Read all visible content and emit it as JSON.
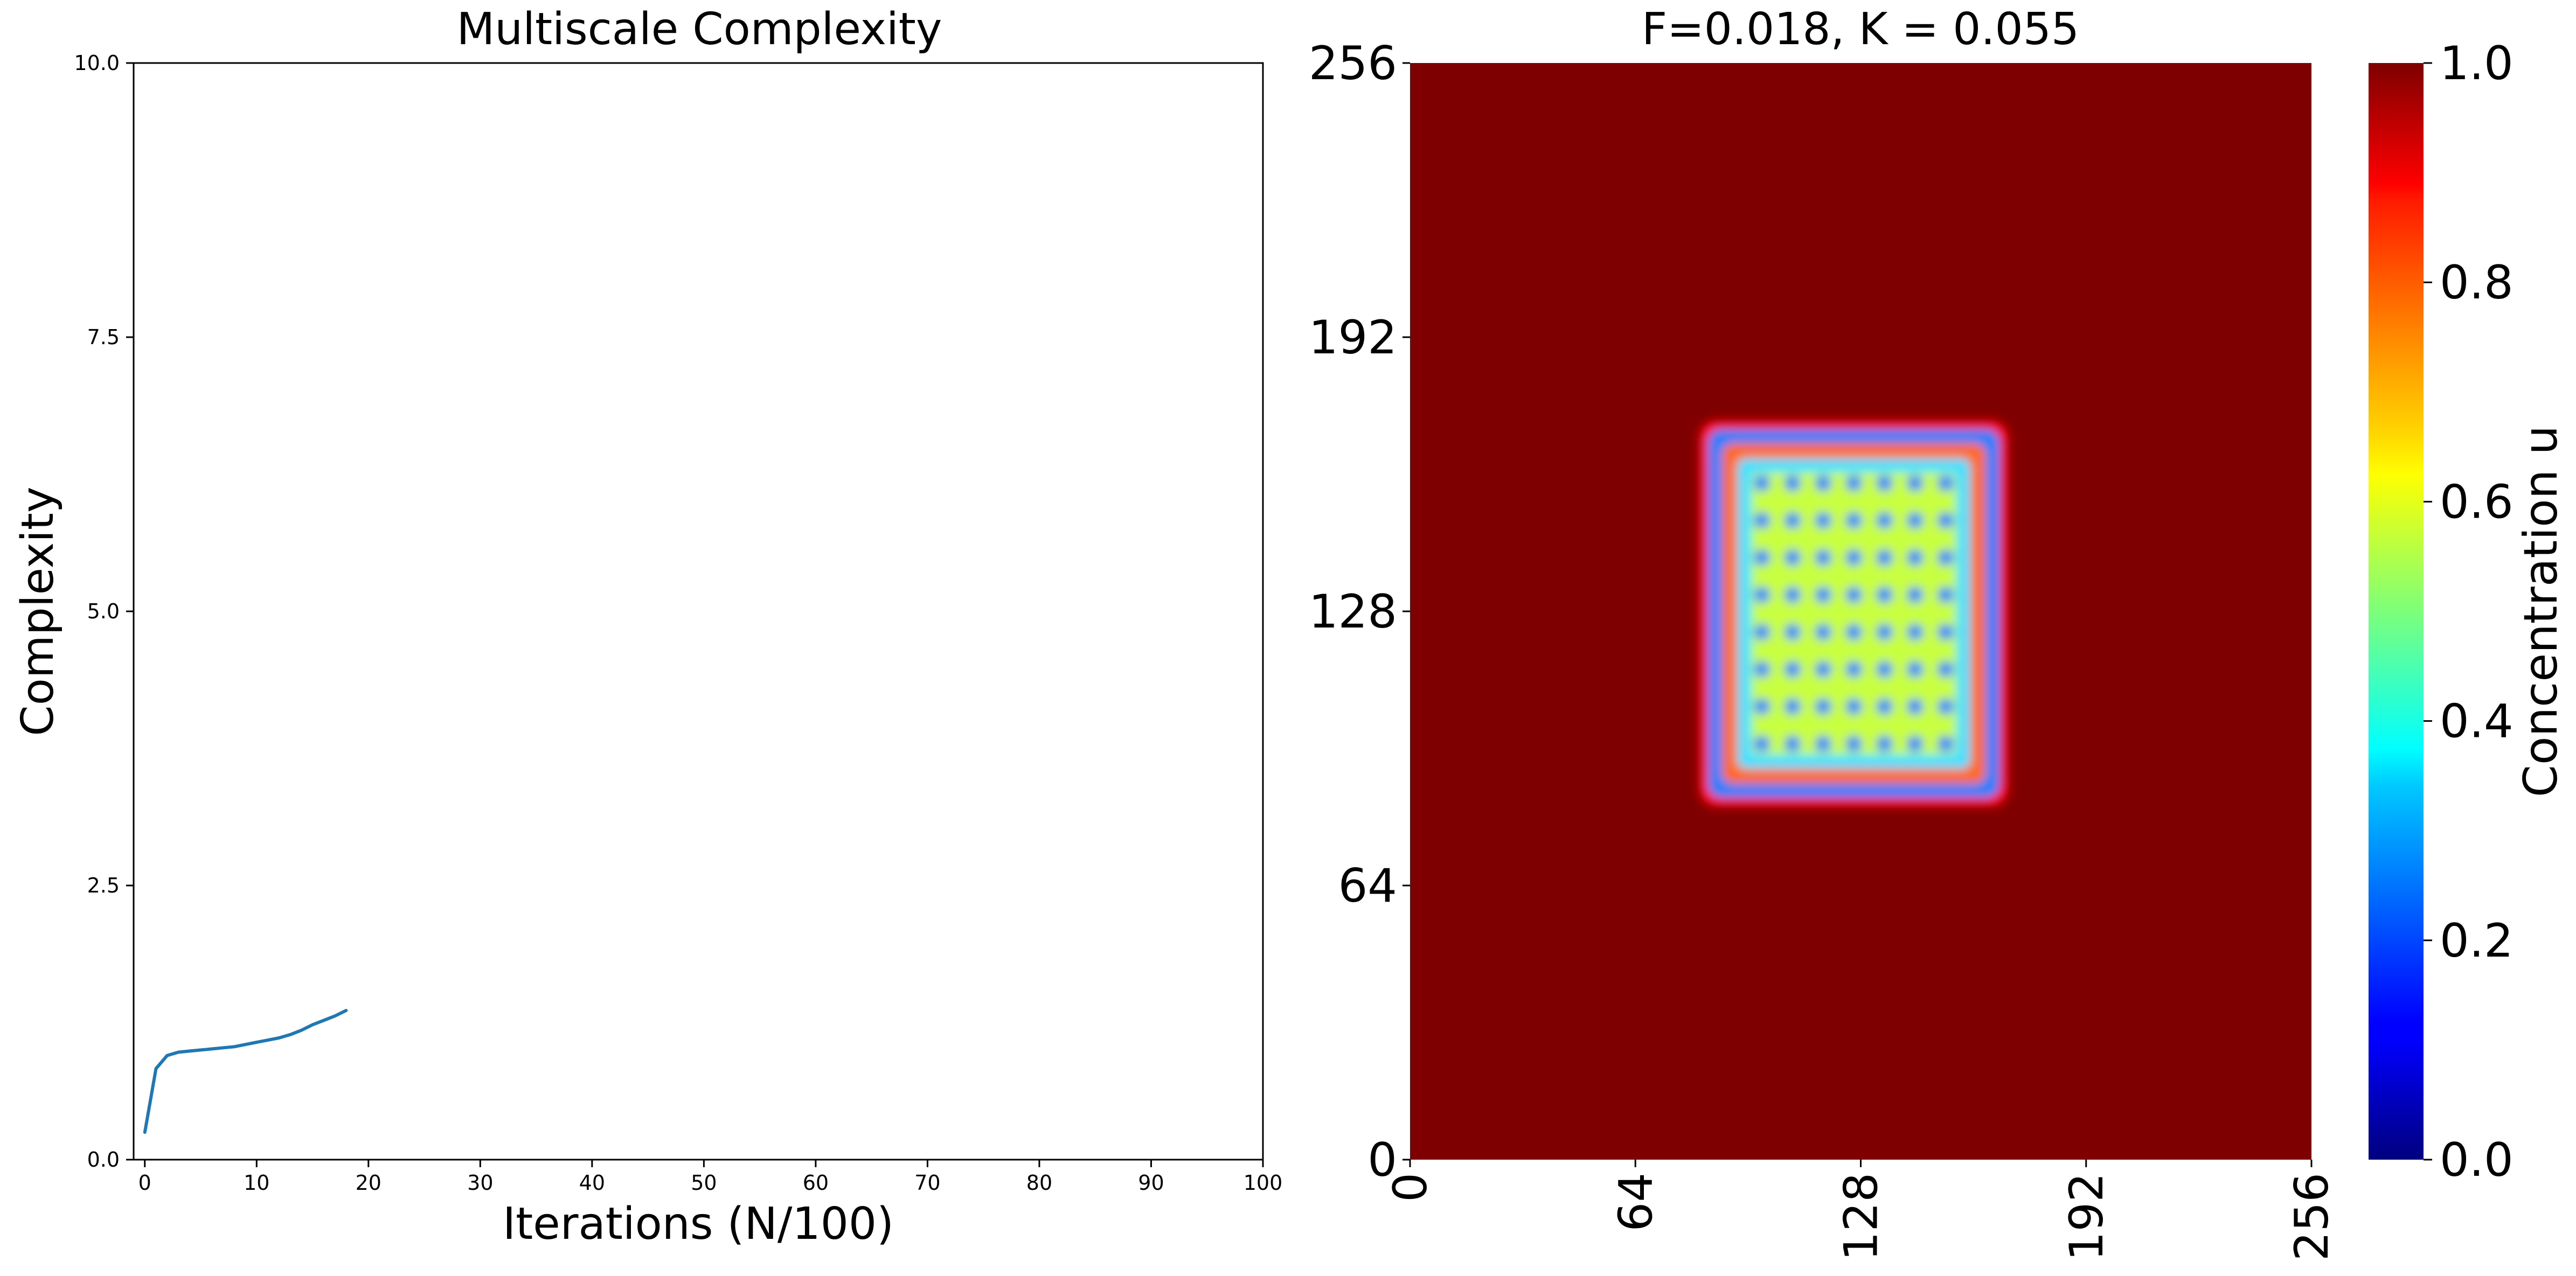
{
  "chart_data": [
    {
      "type": "line",
      "title": "Multiscale Complexity",
      "xlabel": "Iterations (N/100)",
      "ylabel": "Complexity",
      "xlim": [
        -1,
        100
      ],
      "ylim": [
        0,
        10
      ],
      "xticks": [
        0,
        10,
        20,
        30,
        40,
        50,
        60,
        70,
        80,
        90,
        100
      ],
      "xtick_labels": [
        "0",
        "10",
        "20",
        "30",
        "40",
        "50",
        "60",
        "70",
        "80",
        "90",
        "100"
      ],
      "yticks": [
        0,
        2.5,
        5,
        7.5,
        10
      ],
      "ytick_labels": [
        "0.0",
        "2.5",
        "5.0",
        "7.5",
        "10.0"
      ],
      "grid": false,
      "colors": {
        "line": "#1f77b4"
      },
      "series": [
        {
          "x": [
            0,
            1,
            2,
            3,
            4,
            5,
            6,
            7,
            8,
            9,
            10,
            11,
            12,
            13,
            14,
            15,
            16,
            17,
            18
          ],
          "values": [
            0.25,
            0.83,
            0.95,
            0.98,
            0.99,
            1.0,
            1.01,
            1.02,
            1.03,
            1.05,
            1.07,
            1.09,
            1.11,
            1.14,
            1.18,
            1.23,
            1.27,
            1.31,
            1.36
          ]
        }
      ]
    },
    {
      "type": "heatmap",
      "title": "F=0.018, K = 0.055",
      "xlim": [
        0,
        256
      ],
      "ylim": [
        0,
        256
      ],
      "xticks": [
        0,
        64,
        128,
        192,
        256
      ],
      "xtick_labels": [
        "0",
        "64",
        "128",
        "192",
        "256"
      ],
      "yticks": [
        0,
        64,
        128,
        192,
        256
      ],
      "ytick_labels": [
        "0",
        "64",
        "128",
        "192",
        "256"
      ],
      "xtick_rotation": 90,
      "background_value": 1.0,
      "pattern_region": {
        "x": [
          84,
          168
        ],
        "y": [
          84,
          171
        ]
      },
      "colorbar": {
        "label": "Concentration u",
        "colormap": "jet",
        "range": [
          0,
          1
        ],
        "ticks": [
          0,
          0.2,
          0.4,
          0.6,
          0.8,
          1.0
        ],
        "tick_labels": [
          "0.0",
          "0.2",
          "0.4",
          "0.6",
          "0.8",
          "1.0"
        ]
      }
    }
  ]
}
